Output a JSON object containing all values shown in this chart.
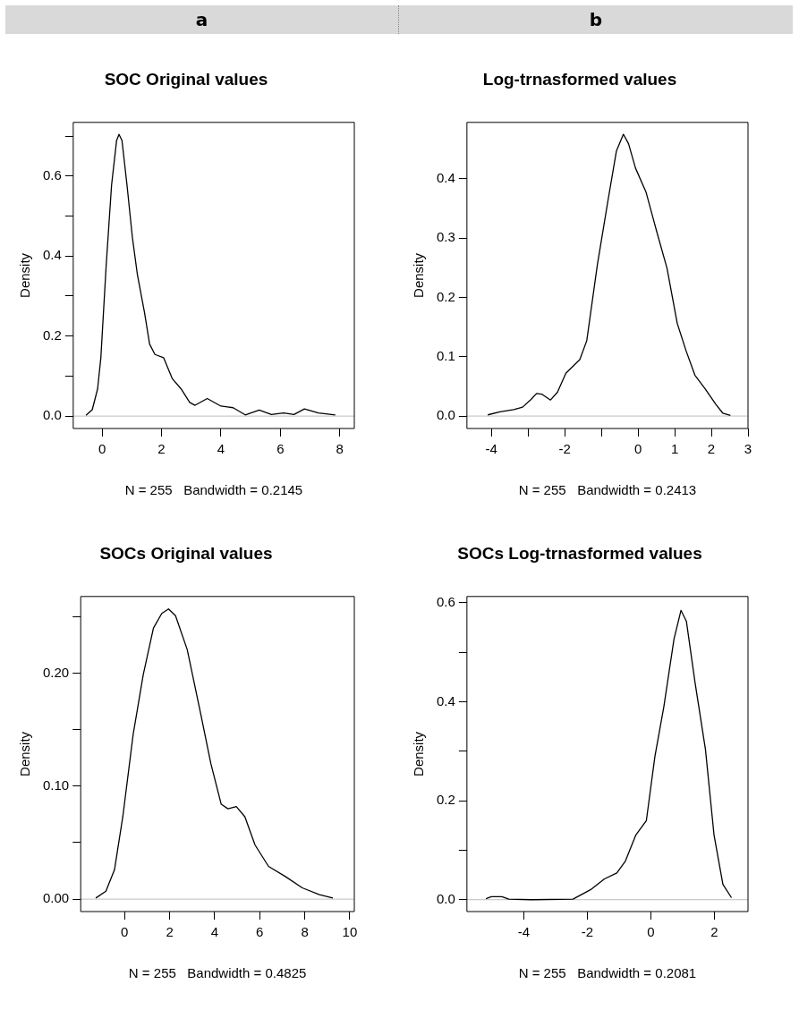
{
  "chart_data": [
    {
      "type": "line",
      "title": "SOC Original values",
      "xlabel": "N = 255   Bandwidth = 0.2145",
      "ylabel": "Density",
      "annotations": [
        "a"
      ],
      "xlim": [
        -0.97,
        8.49
      ],
      "xticks": [
        0,
        2,
        4,
        6,
        8
      ],
      "ylim": [
        -0.031,
        0.734
      ],
      "yticks": [
        {
          "value": 0,
          "label": "0.0"
        },
        {
          "value": 0.1,
          "label": null
        },
        {
          "value": 0.2,
          "label": "0.2"
        },
        {
          "value": 0.3,
          "label": null
        },
        {
          "value": 0.4,
          "label": "0.4"
        },
        {
          "value": 0.5,
          "label": null
        },
        {
          "value": 0.6,
          "label": "0.6"
        },
        {
          "value": 0.7,
          "label": null
        }
      ],
      "ref_lines": [
        {
          "axis": "y",
          "value": 0,
          "color": "#bebebe"
        }
      ],
      "series": [
        {
          "color": "#000000",
          "x": [
            -0.54,
            -0.33,
            -0.15,
            -0.04,
            0.14,
            0.32,
            0.49,
            0.57,
            0.67,
            0.84,
            1.02,
            1.19,
            1.43,
            1.6,
            1.78,
            2.07,
            2.36,
            2.66,
            2.95,
            3.13,
            3.54,
            4.0,
            4.41,
            4.82,
            5.29,
            5.7,
            6.11,
            6.46,
            6.81,
            7.28,
            7.85
          ],
          "values": [
            0.002,
            0.016,
            0.068,
            0.146,
            0.378,
            0.577,
            0.689,
            0.704,
            0.689,
            0.577,
            0.447,
            0.353,
            0.258,
            0.18,
            0.154,
            0.146,
            0.094,
            0.068,
            0.034,
            0.027,
            0.044,
            0.025,
            0.021,
            0.003,
            0.015,
            0.004,
            0.008,
            0.004,
            0.018,
            0.008,
            0.003
          ]
        }
      ]
    },
    {
      "type": "line",
      "title": "Log-trnasformed values",
      "xlabel": "N = 255   Bandwidth = 0.2413",
      "ylabel": "Density",
      "annotations": [
        "b"
      ],
      "xlim": [
        -4.67,
        3.0
      ],
      "xticks": [
        -4,
        {
          "value": -3,
          "label": null
        },
        -2,
        {
          "value": -1,
          "label": null
        },
        0,
        1,
        2,
        3
      ],
      "ylim": [
        -0.021,
        0.495
      ],
      "yticks": [
        {
          "value": 0,
          "label": "0.0"
        },
        0.1,
        0.2,
        0.3,
        0.4
      ],
      "ref_lines": [
        {
          "axis": "y",
          "value": 0,
          "color": "#bebebe"
        }
      ],
      "series": [
        {
          "color": "#000000",
          "x": [
            -4.1,
            -3.77,
            -3.39,
            -3.15,
            -2.92,
            -2.77,
            -2.63,
            -2.39,
            -2.2,
            -1.97,
            -1.59,
            -1.4,
            -1.11,
            -0.83,
            -0.59,
            -0.4,
            -0.26,
            -0.07,
            0.22,
            0.5,
            0.79,
            1.07,
            1.31,
            1.55,
            1.83,
            2.12,
            2.31,
            2.52
          ],
          "values": [
            0.002,
            0.007,
            0.011,
            0.015,
            0.028,
            0.038,
            0.037,
            0.027,
            0.04,
            0.072,
            0.095,
            0.127,
            0.255,
            0.36,
            0.447,
            0.475,
            0.459,
            0.418,
            0.377,
            0.313,
            0.249,
            0.156,
            0.11,
            0.069,
            0.046,
            0.02,
            0.005,
            0.001
          ]
        }
      ]
    },
    {
      "type": "line",
      "title": "SOCs Original values",
      "xlabel": "N = 255   Bandwidth = 0.4825",
      "ylabel": "Density",
      "xlim": [
        -1.95,
        10.2
      ],
      "xticks": [
        0,
        2,
        4,
        6,
        8,
        10
      ],
      "ylim": [
        -0.011,
        0.268
      ],
      "yticks": [
        {
          "value": 0,
          "label": "0.00"
        },
        {
          "value": 0.05,
          "label": null
        },
        {
          "value": 0.1,
          "label": "0.10"
        },
        {
          "value": 0.15,
          "label": null
        },
        {
          "value": 0.2,
          "label": "0.20"
        },
        {
          "value": 0.25,
          "label": null
        }
      ],
      "ref_lines": [
        {
          "axis": "y",
          "value": 0,
          "color": "#bebebe"
        }
      ],
      "series": [
        {
          "color": "#000000",
          "x": [
            -1.28,
            -0.83,
            -0.45,
            -0.08,
            0.38,
            0.83,
            1.28,
            1.65,
            1.95,
            2.26,
            2.78,
            3.38,
            3.83,
            4.29,
            4.59,
            4.96,
            5.34,
            5.79,
            6.39,
            7.14,
            7.89,
            8.65,
            9.25
          ],
          "values": [
            0.001,
            0.007,
            0.026,
            0.073,
            0.146,
            0.199,
            0.24,
            0.253,
            0.257,
            0.251,
            0.221,
            0.164,
            0.12,
            0.084,
            0.08,
            0.082,
            0.073,
            0.048,
            0.029,
            0.02,
            0.01,
            0.004,
            0.001
          ]
        }
      ]
    },
    {
      "type": "line",
      "title": "SOCs Log-trnasformed values",
      "xlabel": "N = 255   Bandwidth = 0.2081",
      "ylabel": "Density",
      "xlim": [
        -5.79,
        3.06
      ],
      "xticks": [
        -4,
        -2,
        0,
        2
      ],
      "ylim": [
        -0.024,
        0.613
      ],
      "yticks": [
        {
          "value": 0,
          "label": "0.0"
        },
        {
          "value": 0.1,
          "label": null
        },
        0.2,
        {
          "value": 0.3,
          "label": null
        },
        0.4,
        {
          "value": 0.5,
          "label": null
        },
        0.6
      ],
      "ref_lines": [
        {
          "axis": "y",
          "value": 0,
          "color": "#bebebe"
        }
      ],
      "series": [
        {
          "color": "#000000",
          "x": [
            -5.19,
            -5.02,
            -4.69,
            -4.47,
            -3.76,
            -2.45,
            -1.9,
            -1.46,
            -1.07,
            -0.8,
            -0.47,
            -0.14,
            0.13,
            0.41,
            0.73,
            0.95,
            1.12,
            1.39,
            1.72,
            1.99,
            2.27,
            2.54
          ],
          "values": [
            0.002,
            0.006,
            0.006,
            0.001,
            0,
            0.001,
            0.02,
            0.042,
            0.054,
            0.078,
            0.131,
            0.16,
            0.29,
            0.39,
            0.527,
            0.585,
            0.563,
            0.44,
            0.304,
            0.131,
            0.031,
            0.004
          ]
        }
      ]
    }
  ]
}
